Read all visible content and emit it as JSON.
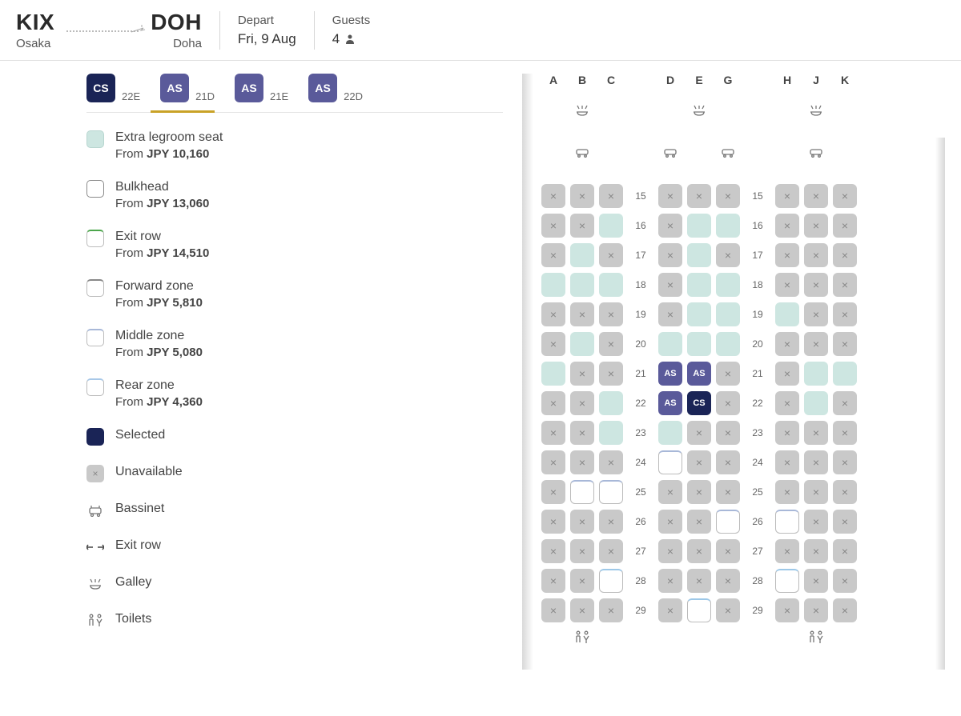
{
  "route": {
    "from_code": "KIX",
    "from_city": "Osaka",
    "to_code": "DOH",
    "to_city": "Doha"
  },
  "header": {
    "depart_label": "Depart",
    "depart_value": "Fri, 9 Aug",
    "guests_label": "Guests",
    "guests_value": "4"
  },
  "passengers": [
    {
      "badge": "CS",
      "seat": "22E",
      "active": true
    },
    {
      "badge": "AS",
      "seat": "21D",
      "active": false
    },
    {
      "badge": "AS",
      "seat": "21E",
      "active": false
    },
    {
      "badge": "AS",
      "seat": "22D",
      "active": false
    }
  ],
  "legend": {
    "extra": {
      "title": "Extra legroom seat",
      "from": "From ",
      "price": "JPY 10,160"
    },
    "bulkhead": {
      "title": "Bulkhead",
      "from": "From ",
      "price": "JPY 13,060"
    },
    "exit": {
      "title": "Exit row",
      "from": "From ",
      "price": "JPY 14,510"
    },
    "forward": {
      "title": "Forward zone",
      "from": "From ",
      "price": "JPY 5,810"
    },
    "middle": {
      "title": "Middle zone",
      "from": "From ",
      "price": "JPY 5,080"
    },
    "rear": {
      "title": "Rear zone",
      "from": "From ",
      "price": "JPY 4,360"
    },
    "selected": "Selected",
    "unavailable": "Unavailable",
    "bassinet": "Bassinet",
    "exitrow": "Exit row",
    "galley": "Galley",
    "toilets": "Toilets"
  },
  "columns": [
    "A",
    "B",
    "C",
    "D",
    "E",
    "G",
    "H",
    "J",
    "K"
  ],
  "galley_cols": [
    "B",
    "E",
    "J"
  ],
  "bassinet_cols": [
    "B",
    "D",
    "G",
    "J"
  ],
  "rows": [
    {
      "n": 15,
      "s": [
        "u",
        "u",
        "u",
        "u",
        "u",
        "u",
        "u",
        "u",
        "u"
      ]
    },
    {
      "n": 16,
      "s": [
        "u",
        "u",
        "e",
        "u",
        "e",
        "e",
        "u",
        "u",
        "u"
      ]
    },
    {
      "n": 17,
      "s": [
        "u",
        "e",
        "u",
        "u",
        "e",
        "u",
        "u",
        "u",
        "u"
      ]
    },
    {
      "n": 18,
      "s": [
        "e",
        "e",
        "e",
        "u",
        "e",
        "e",
        "u",
        "u",
        "u"
      ]
    },
    {
      "n": 19,
      "s": [
        "u",
        "u",
        "u",
        "u",
        "e",
        "e",
        "e",
        "u",
        "u"
      ]
    },
    {
      "n": 20,
      "s": [
        "u",
        "e",
        "u",
        "e",
        "e",
        "e",
        "u",
        "u",
        "u"
      ]
    },
    {
      "n": 21,
      "s": [
        "e",
        "u",
        "u",
        "as",
        "as",
        "u",
        "u",
        "e",
        "e"
      ]
    },
    {
      "n": 22,
      "s": [
        "u",
        "u",
        "e",
        "as",
        "cs",
        "u",
        "u",
        "e",
        "u"
      ]
    },
    {
      "n": 23,
      "s": [
        "u",
        "u",
        "e",
        "e",
        "u",
        "u",
        "u",
        "u",
        "u"
      ]
    },
    {
      "n": 24,
      "s": [
        "u",
        "u",
        "u",
        "m",
        "u",
        "u",
        "u",
        "u",
        "u"
      ]
    },
    {
      "n": 25,
      "s": [
        "u",
        "m",
        "m",
        "u",
        "u",
        "u",
        "u",
        "u",
        "u"
      ]
    },
    {
      "n": 26,
      "s": [
        "u",
        "u",
        "u",
        "u",
        "u",
        "m",
        "m",
        "u",
        "u"
      ]
    },
    {
      "n": 27,
      "s": [
        "u",
        "u",
        "u",
        "u",
        "u",
        "u",
        "u",
        "u",
        "u"
      ]
    },
    {
      "n": 28,
      "s": [
        "u",
        "u",
        "r",
        "u",
        "u",
        "u",
        "r",
        "u",
        "u"
      ]
    },
    {
      "n": 29,
      "s": [
        "u",
        "u",
        "u",
        "u",
        "r",
        "u",
        "u",
        "u",
        "u"
      ]
    }
  ],
  "colors": {
    "selected_primary": "#1a2456",
    "selected_secondary": "#5a5a9a",
    "extra": "#cde6e1",
    "unavailable": "#c9c9c9",
    "accent": "#c9a227"
  }
}
